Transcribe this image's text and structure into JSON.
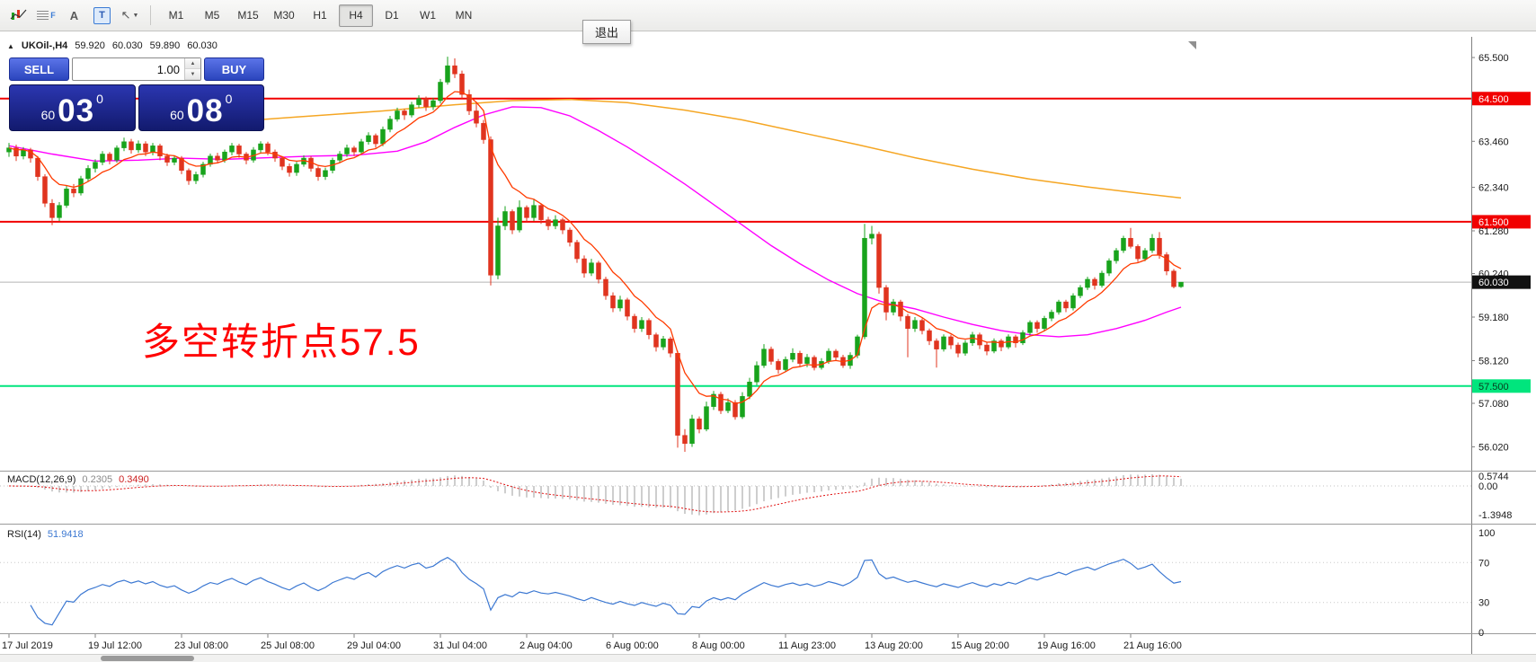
{
  "toolbar": {
    "exit_label": "退出",
    "icon_letters": {
      "a": "A",
      "t": "T",
      "f": "F",
      "cursor": "↖",
      "caret": "▼"
    },
    "timeframes": [
      {
        "label": "M1",
        "active": false
      },
      {
        "label": "M5",
        "active": false
      },
      {
        "label": "M15",
        "active": false
      },
      {
        "label": "M30",
        "active": false
      },
      {
        "label": "H1",
        "active": false
      },
      {
        "label": "H4",
        "active": true
      },
      {
        "label": "D1",
        "active": false
      },
      {
        "label": "W1",
        "active": false
      },
      {
        "label": "MN",
        "active": false
      }
    ]
  },
  "chart": {
    "symbol_label": "UKOil-,H4",
    "collapse_glyph": "▲",
    "ohlc": {
      "open": "59.920",
      "high": "60.030",
      "low": "59.890",
      "close": "60.030"
    },
    "annotation": "多空转折点57.5",
    "current_price": "60.030"
  },
  "trade": {
    "sell_label": "SELL",
    "buy_label": "BUY",
    "volume": "1.00",
    "spin_up": "▲",
    "spin_down": "▼",
    "bid": {
      "small": "60",
      "big": "03",
      "sup": "0"
    },
    "ask": {
      "small": "60",
      "big": "08",
      "sup": "0"
    }
  },
  "macd": {
    "label": "MACD(12,26,9)",
    "value": "0.2305",
    "signal_value": "0.3490"
  },
  "rsi": {
    "label": "RSI(14)",
    "value": "51.9418"
  },
  "colors": {
    "up": "#18a31c",
    "down": "#e0341f",
    "ma_fast": "#ff3b00",
    "ma_mid": "#ff00ff",
    "ma_slow": "#f5a623",
    "line_red": "#f10000",
    "line_green": "#00e57d",
    "bid_line": "#b4b4b4",
    "macd_hist": "#b8b8b8",
    "macd_signal": "#e01010",
    "rsi_line": "#3c78d2",
    "current_badge": "#111111"
  },
  "chart_data": {
    "type": "candlestick",
    "symbol": "UKOil-",
    "timeframe": "H4",
    "ylim": [
      55.5,
      65.95
    ],
    "bid_price": 60.03,
    "ma_fast_period": 8,
    "macd_params": {
      "fast": 12,
      "slow": 26,
      "signal": 9
    },
    "rsi_params": {
      "period": 14,
      "levels": [
        70,
        30
      ]
    },
    "hlines": [
      {
        "price": 64.5,
        "color": "#f10000",
        "width": 2
      },
      {
        "price": 61.5,
        "color": "#f10000",
        "width": 2
      },
      {
        "price": 57.5,
        "color": "#00e57d",
        "width": 2
      }
    ],
    "y_axis": [
      {
        "text": "65.500",
        "price": 65.5,
        "style": "plain"
      },
      {
        "text": "64.500",
        "price": 64.5,
        "style": "red"
      },
      {
        "text": "63.460",
        "price": 63.46,
        "style": "plain"
      },
      {
        "text": "62.340",
        "price": 62.34,
        "style": "plain"
      },
      {
        "text": "61.500",
        "price": 61.5,
        "style": "red"
      },
      {
        "text": "61.280",
        "price": 61.28,
        "style": "plain"
      },
      {
        "text": "60.240",
        "price": 60.24,
        "style": "plain"
      },
      {
        "text": "60.030",
        "price": 60.03,
        "style": "black"
      },
      {
        "text": "59.180",
        "price": 59.18,
        "style": "plain"
      },
      {
        "text": "58.120",
        "price": 58.12,
        "style": "plain"
      },
      {
        "text": "57.500",
        "price": 57.5,
        "style": "green"
      },
      {
        "text": "57.080",
        "price": 57.08,
        "style": "plain"
      },
      {
        "text": "56.020",
        "price": 56.02,
        "style": "plain"
      }
    ],
    "macd_axis": [
      {
        "text": "0.5744",
        "y": 534
      },
      {
        "text": "0.00",
        "y": 545
      },
      {
        "text": "-1.3948",
        "y": 577
      }
    ],
    "rsi_axis": [
      {
        "text": "100",
        "value": 100
      },
      {
        "text": "70",
        "value": 70
      },
      {
        "text": "30",
        "value": 30
      },
      {
        "text": "0",
        "value": 0
      }
    ],
    "x_labels": [
      {
        "bar": 0,
        "text": "17 Jul 2019"
      },
      {
        "bar": 12,
        "text": "19 Jul 12:00"
      },
      {
        "bar": 24,
        "text": "23 Jul 08:00"
      },
      {
        "bar": 36,
        "text": "25 Jul 08:00"
      },
      {
        "bar": 48,
        "text": "29 Jul 04:00"
      },
      {
        "bar": 60,
        "text": "31 Jul 04:00"
      },
      {
        "bar": 72,
        "text": "2 Aug 04:00"
      },
      {
        "bar": 84,
        "text": "6 Aug 00:00"
      },
      {
        "bar": 96,
        "text": "8 Aug 00:00"
      },
      {
        "bar": 108,
        "text": "11 Aug 23:00"
      },
      {
        "bar": 120,
        "text": "13 Aug 20:00"
      },
      {
        "bar": 132,
        "text": "15 Aug 20:00"
      },
      {
        "bar": 144,
        "text": "19 Aug 16:00"
      },
      {
        "bar": 156,
        "text": "21 Aug 16:00"
      }
    ],
    "ma_slow": [
      [
        28,
        63.9
      ],
      [
        40,
        64.05
      ],
      [
        52,
        64.2
      ],
      [
        62,
        64.35
      ],
      [
        70,
        64.45
      ],
      [
        78,
        64.48
      ],
      [
        86,
        64.4
      ],
      [
        94,
        64.22
      ],
      [
        102,
        63.98
      ],
      [
        110,
        63.68
      ],
      [
        118,
        63.38
      ],
      [
        126,
        63.06
      ],
      [
        134,
        62.78
      ],
      [
        142,
        62.54
      ],
      [
        150,
        62.35
      ],
      [
        157,
        62.2
      ],
      [
        163,
        62.08
      ]
    ],
    "ma_mid": [
      [
        0,
        63.35
      ],
      [
        6,
        63.15
      ],
      [
        12,
        62.98
      ],
      [
        18,
        63.0
      ],
      [
        24,
        63.05
      ],
      [
        30,
        63.02
      ],
      [
        36,
        63.06
      ],
      [
        42,
        63.1
      ],
      [
        48,
        63.12
      ],
      [
        54,
        63.22
      ],
      [
        58,
        63.45
      ],
      [
        62,
        63.8
      ],
      [
        66,
        64.1
      ],
      [
        70,
        64.3
      ],
      [
        74,
        64.28
      ],
      [
        78,
        64.08
      ],
      [
        82,
        63.72
      ],
      [
        86,
        63.32
      ],
      [
        90,
        62.88
      ],
      [
        94,
        62.42
      ],
      [
        98,
        61.92
      ],
      [
        102,
        61.42
      ],
      [
        106,
        60.92
      ],
      [
        110,
        60.48
      ],
      [
        114,
        60.08
      ],
      [
        118,
        59.75
      ],
      [
        122,
        59.52
      ],
      [
        126,
        59.38
      ],
      [
        130,
        59.18
      ],
      [
        134,
        59.0
      ],
      [
        138,
        58.85
      ],
      [
        142,
        58.75
      ],
      [
        146,
        58.7
      ],
      [
        150,
        58.75
      ],
      [
        154,
        58.9
      ],
      [
        158,
        59.1
      ],
      [
        161,
        59.3
      ],
      [
        163,
        59.42
      ]
    ],
    "candles": [
      [
        63.2,
        63.42,
        63.08,
        63.3
      ],
      [
        63.3,
        63.38,
        62.98,
        63.1
      ],
      [
        63.1,
        63.32,
        63.02,
        63.25
      ],
      [
        63.25,
        63.3,
        62.94,
        63.05
      ],
      [
        63.05,
        63.1,
        62.5,
        62.6
      ],
      [
        62.6,
        62.66,
        61.86,
        61.95
      ],
      [
        61.95,
        62.05,
        61.42,
        61.6
      ],
      [
        61.6,
        61.98,
        61.52,
        61.9
      ],
      [
        61.9,
        62.38,
        61.84,
        62.3
      ],
      [
        62.3,
        62.42,
        62.1,
        62.2
      ],
      [
        62.2,
        62.62,
        62.14,
        62.55
      ],
      [
        62.55,
        62.88,
        62.48,
        62.8
      ],
      [
        62.8,
        63.02,
        62.7,
        62.95
      ],
      [
        62.95,
        63.22,
        62.88,
        63.15
      ],
      [
        63.15,
        63.2,
        62.9,
        63.0
      ],
      [
        63.0,
        63.36,
        62.94,
        63.3
      ],
      [
        63.3,
        63.55,
        63.22,
        63.45
      ],
      [
        63.45,
        63.52,
        63.16,
        63.25
      ],
      [
        63.25,
        63.48,
        63.18,
        63.4
      ],
      [
        63.4,
        63.46,
        63.1,
        63.2
      ],
      [
        63.2,
        63.42,
        63.12,
        63.35
      ],
      [
        63.35,
        63.4,
        63.0,
        63.1
      ],
      [
        63.1,
        63.16,
        62.86,
        62.95
      ],
      [
        62.95,
        63.12,
        62.88,
        63.05
      ],
      [
        63.05,
        63.1,
        62.66,
        62.75
      ],
      [
        62.75,
        62.8,
        62.4,
        62.5
      ],
      [
        62.5,
        62.72,
        62.42,
        62.65
      ],
      [
        62.65,
        62.96,
        62.58,
        62.9
      ],
      [
        62.9,
        63.16,
        62.84,
        63.1
      ],
      [
        63.1,
        63.18,
        62.92,
        63.0
      ],
      [
        63.0,
        63.26,
        62.94,
        63.2
      ],
      [
        63.2,
        63.42,
        63.12,
        63.35
      ],
      [
        63.35,
        63.4,
        63.06,
        63.15
      ],
      [
        63.15,
        63.2,
        62.9,
        63.0
      ],
      [
        63.0,
        63.32,
        62.94,
        63.25
      ],
      [
        63.25,
        63.46,
        63.18,
        63.4
      ],
      [
        63.4,
        63.45,
        63.12,
        63.2
      ],
      [
        63.2,
        63.26,
        62.96,
        63.05
      ],
      [
        63.05,
        63.1,
        62.76,
        62.85
      ],
      [
        62.85,
        62.92,
        62.6,
        62.7
      ],
      [
        62.7,
        62.96,
        62.62,
        62.9
      ],
      [
        62.9,
        63.12,
        62.84,
        63.05
      ],
      [
        63.05,
        63.1,
        62.72,
        62.8
      ],
      [
        62.8,
        62.85,
        62.5,
        62.6
      ],
      [
        62.6,
        62.82,
        62.52,
        62.75
      ],
      [
        62.75,
        63.06,
        62.68,
        63.0
      ],
      [
        63.0,
        63.22,
        62.94,
        63.15
      ],
      [
        63.15,
        63.38,
        63.08,
        63.3
      ],
      [
        63.3,
        63.35,
        63.1,
        63.2
      ],
      [
        63.2,
        63.52,
        63.14,
        63.45
      ],
      [
        63.45,
        63.68,
        63.38,
        63.6
      ],
      [
        63.6,
        63.65,
        63.3,
        63.4
      ],
      [
        63.4,
        63.82,
        63.34,
        63.75
      ],
      [
        63.75,
        64.08,
        63.68,
        64.0
      ],
      [
        64.0,
        64.28,
        63.94,
        64.2
      ],
      [
        64.2,
        64.25,
        63.98,
        64.1
      ],
      [
        64.1,
        64.42,
        64.04,
        64.35
      ],
      [
        64.35,
        64.58,
        64.28,
        64.5
      ],
      [
        64.5,
        64.55,
        64.2,
        64.3
      ],
      [
        64.3,
        64.52,
        64.22,
        64.45
      ],
      [
        64.45,
        64.98,
        64.38,
        64.9
      ],
      [
        64.9,
        65.52,
        64.84,
        65.3
      ],
      [
        65.3,
        65.48,
        65.0,
        65.1
      ],
      [
        65.1,
        65.18,
        64.5,
        64.6
      ],
      [
        64.6,
        64.72,
        64.1,
        64.2
      ],
      [
        64.2,
        64.4,
        63.8,
        63.9
      ],
      [
        63.9,
        63.98,
        63.4,
        63.5
      ],
      [
        63.5,
        63.58,
        59.95,
        60.2
      ],
      [
        60.2,
        61.6,
        60.1,
        61.4
      ],
      [
        61.4,
        61.88,
        61.3,
        61.75
      ],
      [
        61.75,
        61.8,
        61.2,
        61.3
      ],
      [
        61.3,
        62.02,
        61.24,
        61.85
      ],
      [
        61.85,
        61.9,
        61.5,
        61.6
      ],
      [
        61.6,
        62.06,
        61.52,
        61.9
      ],
      [
        61.9,
        61.95,
        61.45,
        61.55
      ],
      [
        61.55,
        61.62,
        61.3,
        61.4
      ],
      [
        61.4,
        61.66,
        61.32,
        61.55
      ],
      [
        61.55,
        61.6,
        61.2,
        61.3
      ],
      [
        61.3,
        61.36,
        60.9,
        61.0
      ],
      [
        61.0,
        61.06,
        60.5,
        60.6
      ],
      [
        60.6,
        60.68,
        60.14,
        60.25
      ],
      [
        60.25,
        60.6,
        60.18,
        60.5
      ],
      [
        60.5,
        60.55,
        60.0,
        60.1
      ],
      [
        60.1,
        60.16,
        59.6,
        59.7
      ],
      [
        59.7,
        59.78,
        59.3,
        59.4
      ],
      [
        59.4,
        59.7,
        59.32,
        59.6
      ],
      [
        59.6,
        59.65,
        59.1,
        59.2
      ],
      [
        59.2,
        59.26,
        58.8,
        58.9
      ],
      [
        58.9,
        59.18,
        58.82,
        59.1
      ],
      [
        59.1,
        59.15,
        58.64,
        58.75
      ],
      [
        58.75,
        58.8,
        58.34,
        58.45
      ],
      [
        58.45,
        58.72,
        58.38,
        58.65
      ],
      [
        58.65,
        58.7,
        58.2,
        58.3
      ],
      [
        58.3,
        58.36,
        56.0,
        56.3
      ],
      [
        56.3,
        56.45,
        55.9,
        56.1
      ],
      [
        56.1,
        56.8,
        56.02,
        56.7
      ],
      [
        56.7,
        56.76,
        56.35,
        56.45
      ],
      [
        56.45,
        57.12,
        56.4,
        57.0
      ],
      [
        57.0,
        57.38,
        56.92,
        57.3
      ],
      [
        57.3,
        57.36,
        56.82,
        56.9
      ],
      [
        56.9,
        57.2,
        56.84,
        57.1
      ],
      [
        57.1,
        57.16,
        56.68,
        56.75
      ],
      [
        56.75,
        57.35,
        56.7,
        57.25
      ],
      [
        57.25,
        57.7,
        57.18,
        57.6
      ],
      [
        57.6,
        58.1,
        57.52,
        58.0
      ],
      [
        58.0,
        58.52,
        57.94,
        58.4
      ],
      [
        58.4,
        58.46,
        58.02,
        58.1
      ],
      [
        58.1,
        58.16,
        57.8,
        57.9
      ],
      [
        57.9,
        58.22,
        57.84,
        58.15
      ],
      [
        58.15,
        58.42,
        58.08,
        58.3
      ],
      [
        58.3,
        58.36,
        57.98,
        58.05
      ],
      [
        58.05,
        58.28,
        57.96,
        58.2
      ],
      [
        58.2,
        58.25,
        57.88,
        57.95
      ],
      [
        57.95,
        58.18,
        57.9,
        58.1
      ],
      [
        58.1,
        58.42,
        58.04,
        58.35
      ],
      [
        58.35,
        58.4,
        58.12,
        58.2
      ],
      [
        58.2,
        58.26,
        57.94,
        58.0
      ],
      [
        58.0,
        58.32,
        57.92,
        58.25
      ],
      [
        58.25,
        58.75,
        58.18,
        58.7
      ],
      [
        58.7,
        61.45,
        58.64,
        61.1
      ],
      [
        61.1,
        61.4,
        60.95,
        61.2
      ],
      [
        61.2,
        61.26,
        59.75,
        59.9
      ],
      [
        59.9,
        59.96,
        59.1,
        59.3
      ],
      [
        59.3,
        59.62,
        59.22,
        59.55
      ],
      [
        59.55,
        59.6,
        59.08,
        59.2
      ],
      [
        59.2,
        59.26,
        58.2,
        58.9
      ],
      [
        58.9,
        59.18,
        58.82,
        59.1
      ],
      [
        59.1,
        59.15,
        58.76,
        58.85
      ],
      [
        58.85,
        58.9,
        58.5,
        58.6
      ],
      [
        58.6,
        58.66,
        57.95,
        58.4
      ],
      [
        58.4,
        58.76,
        58.34,
        58.7
      ],
      [
        58.7,
        58.75,
        58.4,
        58.5
      ],
      [
        58.5,
        58.56,
        58.2,
        58.3
      ],
      [
        58.3,
        58.62,
        58.24,
        58.55
      ],
      [
        58.55,
        58.82,
        58.48,
        58.75
      ],
      [
        58.75,
        58.8,
        58.4,
        58.5
      ],
      [
        58.5,
        58.56,
        58.25,
        58.35
      ],
      [
        58.35,
        58.66,
        58.3,
        58.6
      ],
      [
        58.6,
        58.65,
        58.35,
        58.45
      ],
      [
        58.45,
        58.76,
        58.4,
        58.7
      ],
      [
        58.7,
        58.75,
        58.44,
        58.55
      ],
      [
        58.55,
        58.86,
        58.5,
        58.8
      ],
      [
        58.8,
        59.1,
        58.74,
        59.05
      ],
      [
        59.05,
        59.1,
        58.8,
        58.9
      ],
      [
        58.9,
        59.21,
        58.84,
        59.15
      ],
      [
        59.15,
        59.36,
        59.08,
        59.3
      ],
      [
        59.3,
        59.6,
        59.24,
        59.55
      ],
      [
        59.55,
        59.6,
        59.3,
        59.4
      ],
      [
        59.4,
        59.76,
        59.34,
        59.7
      ],
      [
        59.7,
        59.96,
        59.64,
        59.9
      ],
      [
        59.9,
        60.16,
        59.84,
        60.1
      ],
      [
        60.1,
        60.15,
        59.85,
        59.95
      ],
      [
        59.95,
        60.31,
        59.9,
        60.25
      ],
      [
        60.25,
        60.61,
        60.18,
        60.55
      ],
      [
        60.55,
        60.86,
        60.48,
        60.8
      ],
      [
        60.8,
        61.16,
        60.74,
        61.1
      ],
      [
        61.1,
        61.35,
        60.85,
        60.9
      ],
      [
        60.9,
        60.95,
        60.52,
        60.6
      ],
      [
        60.6,
        60.86,
        60.54,
        60.8
      ],
      [
        60.8,
        61.2,
        60.74,
        61.1
      ],
      [
        61.1,
        61.25,
        60.6,
        60.7
      ],
      [
        60.7,
        60.76,
        60.2,
        60.3
      ],
      [
        60.3,
        60.35,
        59.88,
        59.92
      ],
      [
        59.92,
        60.03,
        59.89,
        60.03
      ]
    ]
  }
}
